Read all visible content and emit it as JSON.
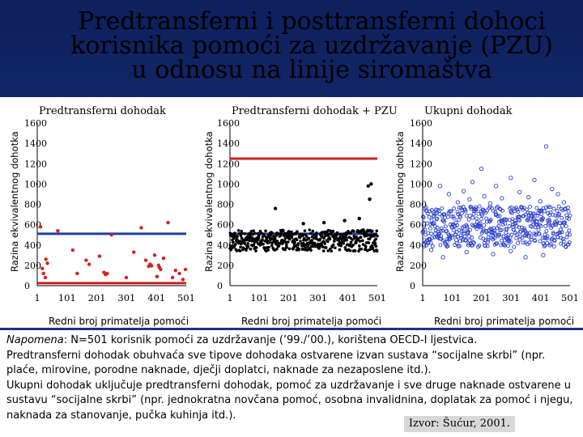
{
  "title": {
    "line1": "Predtransferni i posttransferni dohoci",
    "line2": "korisnika pomoći za uzdržavanje (PZU)",
    "line3": "u odnosu na linije siromaštva"
  },
  "colors": {
    "blue_line": "#1f3fa0",
    "red_line": "#cc2020",
    "red_points": "#d42020",
    "black_points": "#000000",
    "blue_points": "#2a3fd0"
  },
  "chart_data": [
    {
      "type": "scatter",
      "title": "Predtransferni dohodak",
      "ylabel": "Razina ekvivalentnog dohotka",
      "xlabel": "Redni broj primatelja pomoći",
      "xlim": [
        1,
        501
      ],
      "ylim": [
        0,
        1600
      ],
      "x_ticks": [
        "1",
        "101",
        "201",
        "301",
        "401",
        "501"
      ],
      "y_ticks": [
        "0",
        "200",
        "400",
        "600",
        "800",
        "1000",
        "1200",
        "1400",
        "1600"
      ],
      "marker": "filled-dot",
      "reference_lines": [
        {
          "y": 510,
          "color": "blue"
        },
        {
          "y": 25,
          "color": "red"
        }
      ],
      "points": [
        [
          12,
          580
        ],
        [
          18,
          170
        ],
        [
          22,
          120
        ],
        [
          28,
          80
        ],
        [
          30,
          260
        ],
        [
          35,
          220
        ],
        [
          70,
          540
        ],
        [
          120,
          350
        ],
        [
          135,
          120
        ],
        [
          165,
          250
        ],
        [
          175,
          210
        ],
        [
          210,
          290
        ],
        [
          225,
          130
        ],
        [
          230,
          110
        ],
        [
          236,
          120
        ],
        [
          250,
          500
        ],
        [
          300,
          80
        ],
        [
          325,
          330
        ],
        [
          350,
          570
        ],
        [
          365,
          250
        ],
        [
          375,
          190
        ],
        [
          380,
          210
        ],
        [
          385,
          195
        ],
        [
          395,
          300
        ],
        [
          403,
          90
        ],
        [
          408,
          200
        ],
        [
          411,
          180
        ],
        [
          415,
          160
        ],
        [
          425,
          270
        ],
        [
          440,
          620
        ],
        [
          455,
          80
        ],
        [
          465,
          150
        ],
        [
          478,
          120
        ],
        [
          490,
          60
        ],
        [
          498,
          160
        ]
      ]
    },
    {
      "type": "scatter",
      "title": "Predtransferni dohodak + PZU",
      "ylabel": "Razina ekvivalentnog dohotka",
      "xlabel": "Redni broj primatelja pomoći",
      "xlim": [
        1,
        501
      ],
      "ylim": [
        0,
        1600
      ],
      "x_ticks": [
        "1",
        "101",
        "201",
        "301",
        "401",
        "501"
      ],
      "y_ticks": [
        "0",
        "200",
        "400",
        "600",
        "800",
        "1000",
        "1200",
        "1400",
        "1600"
      ],
      "marker": "filled-dot",
      "reference_lines": [
        {
          "y": 1250,
          "color": "red"
        },
        {
          "y": 510,
          "color": "blue"
        }
      ],
      "band": {
        "y_min": 340,
        "y_max": 550,
        "n": 501
      },
      "points": [
        [
          155,
          760
        ],
        [
          395,
          470
        ],
        [
          470,
          980
        ],
        [
          475,
          850
        ],
        [
          480,
          1000
        ],
        [
          250,
          610
        ],
        [
          320,
          620
        ],
        [
          390,
          640
        ],
        [
          440,
          660
        ]
      ]
    },
    {
      "type": "scatter",
      "title": "Ukupni dohodak",
      "ylabel": "Razina ekvivalentnog dohotka",
      "xlabel": "Redni broj primatelja pomoći",
      "xlim": [
        1,
        501
      ],
      "ylim": [
        0,
        1600
      ],
      "x_ticks": [
        "1",
        "101",
        "201",
        "301",
        "401",
        "501"
      ],
      "y_ticks": [
        "0",
        "200",
        "400",
        "600",
        "800",
        "1000",
        "1200",
        "1400",
        "1600"
      ],
      "marker": "open-circle",
      "reference_lines": [],
      "band": {
        "y_min": 380,
        "y_max": 780,
        "n": 501
      },
      "points": [
        [
          420,
          1370
        ],
        [
          200,
          1150
        ],
        [
          300,
          1060
        ],
        [
          170,
          1020
        ],
        [
          380,
          1040
        ],
        [
          250,
          980
        ],
        [
          140,
          930
        ],
        [
          330,
          920
        ],
        [
          440,
          950
        ],
        [
          210,
          880
        ],
        [
          270,
          860
        ],
        [
          90,
          900
        ],
        [
          160,
          850
        ],
        [
          360,
          870
        ],
        [
          460,
          900
        ],
        [
          120,
          820
        ],
        [
          230,
          810
        ],
        [
          400,
          830
        ],
        [
          60,
          980
        ],
        [
          480,
          820
        ],
        [
          300,
          340
        ],
        [
          150,
          330
        ],
        [
          410,
          300
        ],
        [
          30,
          350
        ],
        [
          70,
          280
        ],
        [
          240,
          310
        ],
        [
          350,
          280
        ]
      ]
    }
  ],
  "note": {
    "line1_label": "Napomena",
    "line1_text": ": N=501 korisnik pomoći za uzdržavanje (’99./’00.), korištena OECD-I ljestvica.",
    "line2": "Predtransferni dohodak obuhvaća sve tipove dohodaka ostvarene izvan sustava “socijalne skrbi” (npr.",
    "line3": "plaće, mirovine, porodne naknade, dječji doplatci, naknade za nezaposlene itd.).",
    "line4": "Ukupni dohodak uključuje predtransferni dohodak, pomoć za uzdržavanje i sve druge naknade ostvarene u",
    "line5": "sustavu “socijalne skrbi” (npr. jednokratna novčana pomoć, osobna invalidnina, doplatak za pomoć i njegu,",
    "line6": "naknada za stanovanje, pučka kuhinja itd.).",
    "source": "Izvor: Šućur, 2001."
  }
}
